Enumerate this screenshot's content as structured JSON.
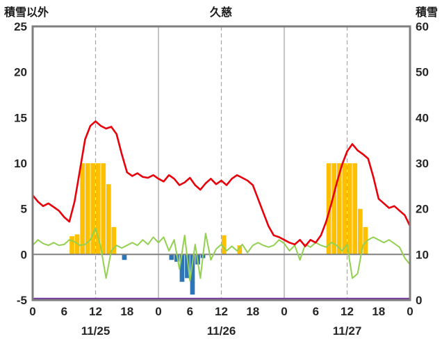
{
  "header": {
    "left_axis_title": "積雪以外",
    "title": "久慈",
    "right_axis_title": "積雪"
  },
  "chart_data": {
    "type": "line+bar",
    "title": "久慈",
    "left_axis": {
      "label": "積雪以外",
      "min": -5,
      "max": 25,
      "ticks": [
        25,
        20,
        15,
        10,
        5,
        0,
        -5
      ]
    },
    "right_axis": {
      "label": "積雪",
      "min": 0,
      "max": 60,
      "ticks": [
        60,
        50,
        40,
        30,
        20,
        10,
        0
      ]
    },
    "x_axis": {
      "total_hours": 72,
      "hour_ticks_per_day": [
        0,
        6,
        12,
        18
      ],
      "end_tick_label": "0",
      "day_labels": [
        "11/25",
        "11/26",
        "11/27"
      ],
      "noon_gridlines_hours": [
        12,
        36,
        60
      ],
      "day_boundary_hours": [
        24,
        48
      ]
    },
    "grid_color": "#a6a6a6",
    "zero_line_color": "#808080",
    "border_color": "#7f7f7f",
    "series": [
      {
        "id": "orange-bars",
        "type": "bar",
        "axis": "left",
        "color": "#ffc000",
        "values": [
          0,
          0,
          0,
          0,
          0,
          0,
          0,
          2,
          2.2,
          10,
          10,
          10,
          10,
          10,
          7.7,
          3,
          0,
          0,
          0,
          0,
          0,
          0,
          0,
          0,
          0,
          0,
          0,
          0,
          0,
          0,
          0,
          0,
          0,
          0,
          0,
          0,
          2.1,
          0,
          0,
          1,
          0,
          0,
          0,
          0,
          0,
          0,
          0,
          0,
          0,
          0,
          0,
          0,
          0,
          0,
          0,
          0,
          10,
          10,
          10,
          10,
          10,
          10,
          5,
          3,
          0,
          0,
          0,
          0,
          0,
          0,
          0,
          0
        ]
      },
      {
        "id": "blue-bars",
        "type": "bar",
        "axis": "left",
        "color": "#2e75b6",
        "values": [
          0,
          0,
          0,
          0,
          0,
          0,
          0,
          0,
          0,
          0,
          0,
          0,
          0,
          0,
          0,
          0,
          0,
          -0.6,
          0,
          0,
          0,
          0,
          0,
          0,
          0,
          0,
          -0.6,
          -0.8,
          -3.0,
          -2.6,
          -4.4,
          -1.1,
          -0.4,
          0,
          0,
          0,
          0,
          0,
          0,
          0,
          0,
          0,
          0,
          0,
          0,
          0,
          0,
          0,
          0,
          0,
          0,
          0,
          0,
          0,
          0,
          0,
          0,
          0,
          0,
          0,
          0,
          0,
          0,
          0,
          0,
          0,
          0,
          0,
          0,
          0,
          0,
          0
        ]
      },
      {
        "id": "green-line",
        "type": "line",
        "axis": "left",
        "color": "#92d050",
        "width": 2,
        "values": [
          1.0,
          1.6,
          1.2,
          1.0,
          1.3,
          1.0,
          1.1,
          1.6,
          1.4,
          1.0,
          1.1,
          1.6,
          2.9,
          0.8,
          -2.6,
          0.4,
          1.0,
          0.7,
          1.0,
          1.3,
          1.0,
          1.6,
          1.1,
          1.9,
          1.3,
          1.9,
          0.4,
          1.6,
          -1.6,
          2.1,
          -2.9,
          1.1,
          -2.6,
          2.3,
          -0.6,
          0.6,
          1.1,
          0.4,
          0.9,
          0.4,
          1.1,
          0.2,
          1.0,
          1.3,
          1.0,
          0.8,
          1.0,
          1.6,
          1.2,
          0.4,
          1.0,
          -0.6,
          1.1,
          0.8,
          1.3,
          1.0,
          0.8,
          1.3,
          1.0,
          0.4,
          1.1,
          -2.6,
          -2.1,
          1.0,
          1.6,
          1.9,
          1.6,
          1.3,
          1.6,
          1.2,
          0.8,
          -0.4,
          -1.1
        ]
      },
      {
        "id": "red-line",
        "type": "line",
        "axis": "left",
        "color": "#e8000b",
        "width": 2.6,
        "values": [
          6.5,
          5.8,
          5.3,
          5.6,
          5.2,
          4.8,
          4.1,
          3.6,
          5.8,
          9.2,
          12.6,
          14.1,
          14.6,
          14.1,
          13.8,
          14.0,
          13.2,
          11.0,
          9.0,
          8.6,
          8.9,
          8.5,
          8.4,
          8.7,
          8.3,
          8.0,
          8.7,
          8.3,
          7.6,
          7.9,
          8.4,
          7.6,
          7.1,
          7.8,
          8.3,
          7.7,
          8.1,
          7.6,
          8.3,
          8.7,
          8.4,
          8.1,
          7.6,
          6.1,
          4.6,
          3.1,
          2.1,
          1.9,
          1.6,
          1.3,
          1.1,
          1.6,
          0.9,
          1.6,
          1.3,
          2.1,
          3.6,
          5.6,
          7.8,
          9.8,
          11.3,
          12.1,
          11.4,
          11.0,
          10.5,
          8.5,
          6.1,
          5.6,
          5.1,
          5.3,
          4.8,
          4.3,
          3.1
        ]
      },
      {
        "id": "purple-snow-line",
        "type": "constant-line",
        "axis": "right",
        "color": "#7030a0",
        "width": 2.5,
        "constant": 0
      }
    ]
  }
}
